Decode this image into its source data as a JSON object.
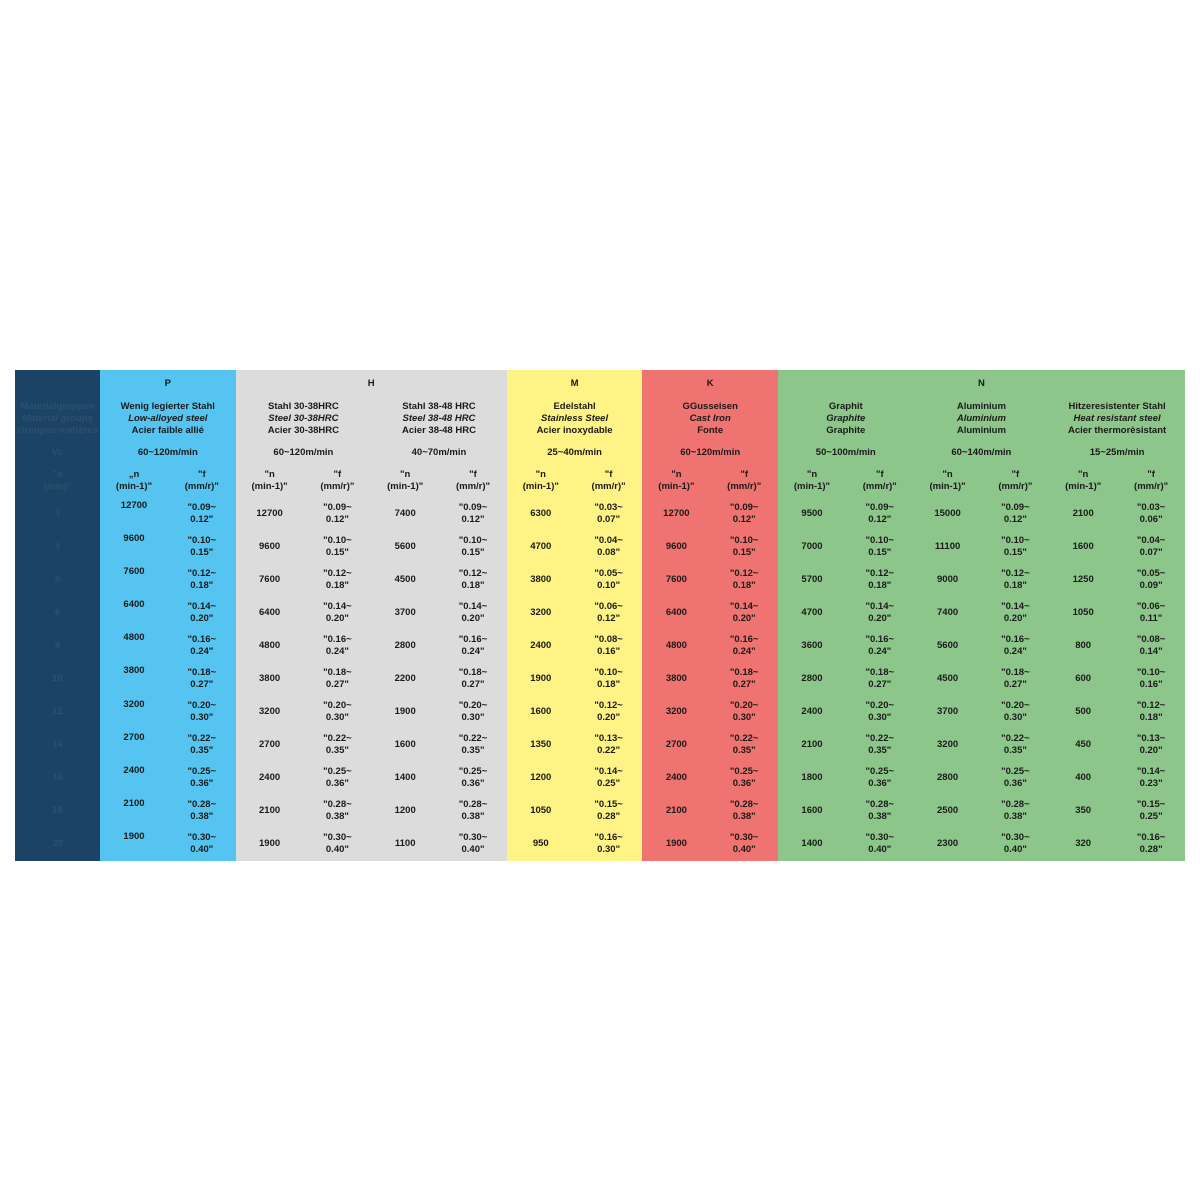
{
  "colors": {
    "first": "#1b4366",
    "P": "#56c4f0",
    "H": "#dcdcdc",
    "M": "#fef384",
    "K": "#ef7370",
    "N": "#8dc68a"
  },
  "first_column": {
    "label_lines": [
      "Materialgruppen",
      "Material groups",
      "Groupes matières"
    ],
    "vc_label": "Vc",
    "d_label": "\"ø\n(mm)\"",
    "diameters": [
      "3",
      "4",
      "5",
      "6",
      "8",
      "10",
      "12",
      "14",
      "16",
      "18",
      "20"
    ]
  },
  "groups": [
    {
      "letter": "P",
      "span": 1
    },
    {
      "letter": "H",
      "span": 2
    },
    {
      "letter": "M",
      "span": 1
    },
    {
      "letter": "K",
      "span": 1
    },
    {
      "letter": "N",
      "span": 3
    }
  ],
  "n_header": "\"n\n(min-1)\"",
  "f_header": "\"f\n(mm/r)\"",
  "p_n_header": "„n\n(min-1)\"",
  "materials": [
    {
      "group": "P",
      "de": "Wenig legierter Stahl",
      "en": "Low-alloyed steel",
      "fr": "Acier faible allié",
      "vc": "60~120m/min",
      "n": [
        "12700",
        "9600",
        "7600",
        "6400",
        "4800",
        "3800",
        "3200",
        "2700",
        "2400",
        "2100",
        "1900"
      ],
      "f": [
        "\"0.09~\n0.12\"",
        "\"0.10~\n0.15\"",
        "\"0.12~\n0.18\"",
        "\"0.14~\n0.20\"",
        "\"0.16~\n0.24\"",
        "\"0.18~\n0.27\"",
        "\"0.20~\n0.30\"",
        "\"0.22~\n0.35\"",
        "\"0.25~\n0.36\"",
        "\"0.28~\n0.38\"",
        "\"0.30~\n0.40\""
      ]
    },
    {
      "group": "H",
      "de": "Stahl 30-38HRC",
      "en": "Steel 30-38HRC",
      "fr": "Acier 30-38HRC",
      "vc": "60~120m/min",
      "n": [
        "12700",
        "9600",
        "7600",
        "6400",
        "4800",
        "3800",
        "3200",
        "2700",
        "2400",
        "2100",
        "1900"
      ],
      "f": [
        "\"0.09~\n0.12\"",
        "\"0.10~\n0.15\"",
        "\"0.12~\n0.18\"",
        "\"0.14~\n0.20\"",
        "\"0.16~\n0.24\"",
        "\"0.18~\n0.27\"",
        "\"0.20~\n0.30\"",
        "\"0.22~\n0.35\"",
        "\"0.25~\n0.36\"",
        "\"0.28~\n0.38\"",
        "\"0.30~\n0.40\""
      ]
    },
    {
      "group": "H",
      "de": "Stahl 38-48 HRC",
      "en": "Steel 38-48 HRC",
      "fr": "Acier 38-48 HRC",
      "vc": "40~70m/min",
      "n": [
        "7400",
        "5600",
        "4500",
        "3700",
        "2800",
        "2200",
        "1900",
        "1600",
        "1400",
        "1200",
        "1100"
      ],
      "f": [
        "\"0.09~\n0.12\"",
        "\"0.10~\n0.15\"",
        "\"0.12~\n0.18\"",
        "\"0.14~\n0.20\"",
        "\"0.16~\n0.24\"",
        "\"0.18~\n0.27\"",
        "\"0.20~\n0.30\"",
        "\"0.22~\n0.35\"",
        "\"0.25~\n0.36\"",
        "\"0.28~\n0.38\"",
        "\"0.30~\n0.40\""
      ]
    },
    {
      "group": "M",
      "de": "Edelstahl",
      "en": "Stainless Steel",
      "fr": "Acier inoxydable",
      "vc": "25~40m/min",
      "n": [
        "6300",
        "4700",
        "3800",
        "3200",
        "2400",
        "1900",
        "1600",
        "1350",
        "1200",
        "1050",
        "950"
      ],
      "f": [
        "\"0.03~\n0.07\"",
        "\"0.04~\n0.08\"",
        "\"0.05~\n0.10\"",
        "\"0.06~\n0.12\"",
        "\"0.08~\n0.16\"",
        "\"0.10~\n0.18\"",
        "\"0.12~\n0.20\"",
        "\"0.13~\n0.22\"",
        "\"0.14~\n0.25\"",
        "\"0.15~\n0.28\"",
        "\"0.16~\n0.30\""
      ]
    },
    {
      "group": "K",
      "de": "GGusseisen",
      "en": "Cast Iron",
      "fr": "Fonte",
      "vc": "60~120m/min",
      "n": [
        "12700",
        "9600",
        "7600",
        "6400",
        "4800",
        "3800",
        "3200",
        "2700",
        "2400",
        "2100",
        "1900"
      ],
      "f": [
        "\"0.09~\n0.12\"",
        "\"0.10~\n0.15\"",
        "\"0.12~\n0.18\"",
        "\"0.14~\n0.20\"",
        "\"0.16~\n0.24\"",
        "\"0.18~\n0.27\"",
        "\"0.20~\n0.30\"",
        "\"0.22~\n0.35\"",
        "\"0.25~\n0.36\"",
        "\"0.28~\n0.38\"",
        "\"0.30~\n0.40\""
      ]
    },
    {
      "group": "N",
      "de": "Graphit",
      "en": "Graphite",
      "fr": "Graphite",
      "vc": "50~100m/min",
      "n": [
        "9500",
        "7000",
        "5700",
        "4700",
        "3600",
        "2800",
        "2400",
        "2100",
        "1800",
        "1600",
        "1400"
      ],
      "f": [
        "\"0.09~\n0.12\"",
        "\"0.10~\n0.15\"",
        "\"0.12~\n0.18\"",
        "\"0.14~\n0.20\"",
        "\"0.16~\n0.24\"",
        "\"0.18~\n0.27\"",
        "\"0.20~\n0.30\"",
        "\"0.22~\n0.35\"",
        "\"0.25~\n0.36\"",
        "\"0.28~\n0.38\"",
        "\"0.30~\n0.40\""
      ]
    },
    {
      "group": "N",
      "de": "Aluminium",
      "en": "Aluminium",
      "fr": "Aluminium",
      "vc": "60~140m/min",
      "n": [
        "15000",
        "11100",
        "9000",
        "7400",
        "5600",
        "4500",
        "3700",
        "3200",
        "2800",
        "2500",
        "2300"
      ],
      "f": [
        "\"0.09~\n0.12\"",
        "\"0.10~\n0.15\"",
        "\"0.12~\n0.18\"",
        "\"0.14~\n0.20\"",
        "\"0.16~\n0.24\"",
        "\"0.18~\n0.27\"",
        "\"0.20~\n0.30\"",
        "\"0.22~\n0.35\"",
        "\"0.25~\n0.36\"",
        "\"0.28~\n0.38\"",
        "\"0.30~\n0.40\""
      ]
    },
    {
      "group": "N",
      "de": "Hitzeresistenter Stahl",
      "en": "Heat resistant steel",
      "fr": "Acier thermorèsistant",
      "vc": "15~25m/min",
      "n": [
        "2100",
        "1600",
        "1250",
        "1050",
        "800",
        "600",
        "500",
        "450",
        "400",
        "350",
        "320"
      ],
      "f": [
        "\"0.03~\n0.06\"",
        "\"0.04~\n0.07\"",
        "\"0.05~\n0.09\"",
        "\"0.06~\n0.11\"",
        "\"0.08~\n0.14\"",
        "\"0.10~\n0.16\"",
        "\"0.12~\n0.18\"",
        "\"0.13~\n0.20\"",
        "\"0.14~\n0.23\"",
        "\"0.15~\n0.25\"",
        "\"0.16~\n0.28\""
      ]
    }
  ]
}
